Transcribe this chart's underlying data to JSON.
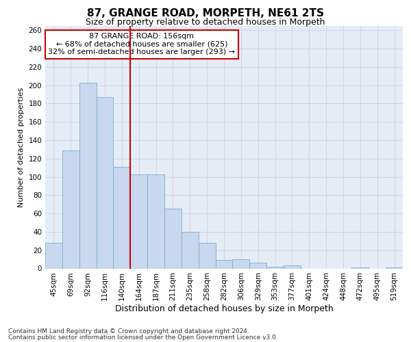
{
  "title": "87, GRANGE ROAD, MORPETH, NE61 2TS",
  "subtitle": "Size of property relative to detached houses in Morpeth",
  "xlabel": "Distribution of detached houses by size in Morpeth",
  "ylabel": "Number of detached properties",
  "categories": [
    "45sqm",
    "69sqm",
    "92sqm",
    "116sqm",
    "140sqm",
    "164sqm",
    "187sqm",
    "211sqm",
    "235sqm",
    "258sqm",
    "282sqm",
    "306sqm",
    "329sqm",
    "353sqm",
    "377sqm",
    "401sqm",
    "424sqm",
    "448sqm",
    "472sqm",
    "495sqm",
    "519sqm"
  ],
  "values": [
    28,
    129,
    203,
    187,
    111,
    103,
    103,
    65,
    40,
    28,
    9,
    10,
    6,
    2,
    3,
    0,
    0,
    0,
    1,
    0,
    1
  ],
  "bar_color": "#c8d8ee",
  "bar_edge_color": "#7aafd4",
  "vline_color": "#cc0000",
  "vline_index": 5,
  "annotation_text": "87 GRANGE ROAD: 156sqm\n← 68% of detached houses are smaller (625)\n32% of semi-detached houses are larger (293) →",
  "annotation_box_color": "white",
  "annotation_box_edge_color": "#cc0000",
  "grid_color": "#c8d4e8",
  "background_color": "#e6ecf5",
  "footer_line1": "Contains HM Land Registry data © Crown copyright and database right 2024.",
  "footer_line2": "Contains public sector information licensed under the Open Government Licence v3.0.",
  "ylim": [
    0,
    265
  ],
  "yticks": [
    0,
    20,
    40,
    60,
    80,
    100,
    120,
    140,
    160,
    180,
    200,
    220,
    240,
    260
  ],
  "title_fontsize": 11,
  "subtitle_fontsize": 9,
  "xlabel_fontsize": 9,
  "ylabel_fontsize": 8,
  "tick_fontsize": 7.5,
  "annotation_fontsize": 8,
  "footer_fontsize": 6.5
}
